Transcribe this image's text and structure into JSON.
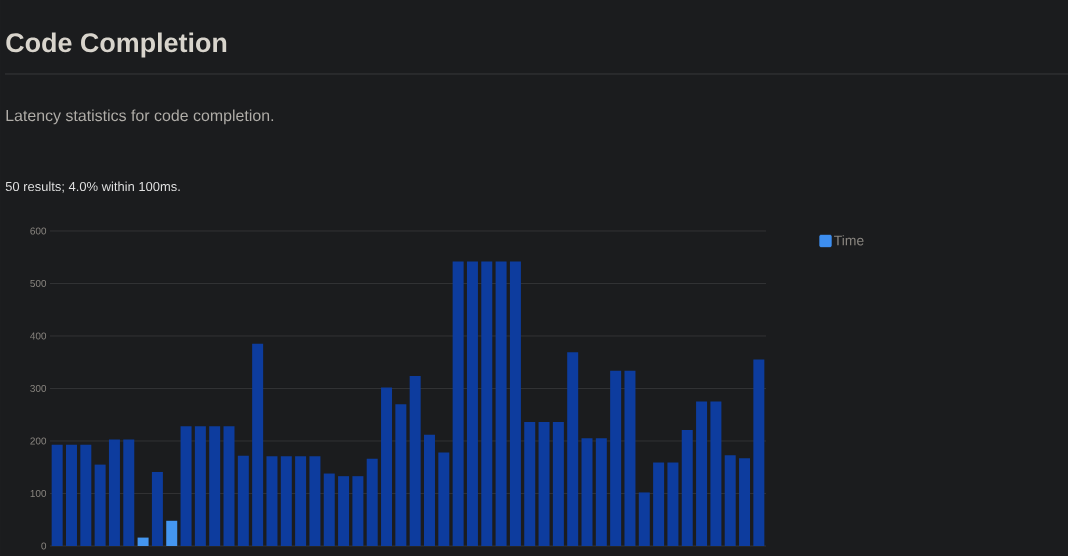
{
  "chart_data": {
    "type": "bar",
    "title": "Code Completion",
    "subtitle": "Latency statistics for code completion.",
    "annotations": [
      "50 results; 4.0% within 100ms."
    ],
    "categories": [
      null,
      null,
      null,
      null,
      null,
      null,
      null,
      null,
      null,
      null,
      null,
      null,
      null,
      null,
      null,
      null,
      null,
      null,
      null,
      null,
      null,
      null,
      null,
      null,
      null,
      null,
      null,
      null,
      null,
      null,
      null,
      null,
      null,
      null,
      null,
      null,
      null,
      null,
      null,
      null,
      null,
      null,
      null,
      null,
      null,
      null,
      null,
      null,
      null,
      null
    ],
    "series": [
      {
        "name": "Time",
        "color": "#3d8ef0",
        "colors": [
          "#0d3c9e",
          "#0d3c9e",
          "#0d3c9e",
          "#0d3c9e",
          "#0d3c9e",
          "#0d3c9e",
          "#4496f0",
          "#0d3c9e",
          "#4496f0",
          "#0d3c9e",
          "#0d3c9e",
          "#0d3c9e",
          "#0d3c9e",
          "#0d3c9e",
          "#0d3c9e",
          "#0d3c9e",
          "#0d3c9e",
          "#0d3c9e",
          "#0d3c9e",
          "#0d3c9e",
          "#0d3c9e",
          "#0d3c9e",
          "#0d3c9e",
          "#0d3c9e",
          "#0d3c9e",
          "#0d3c9e",
          "#0d3c9e",
          "#0d3c9e",
          "#0d3c9e",
          "#0d3c9e",
          "#0d3c9e",
          "#0d3c9e",
          "#0d3c9e",
          "#0d3c9e",
          "#0d3c9e",
          "#0d3c9e",
          "#0d3c9e",
          "#0d3c9e",
          "#0d3c9e",
          "#0d3c9e",
          "#0d3c9e",
          "#0d3c9e",
          "#0d3c9e",
          "#0d3c9e",
          "#0d3c9e",
          "#0d3c9e",
          "#0d3c9e",
          "#0d3c9e",
          "#0d3c9e",
          "#0d3c9e"
        ],
        "values": [
          193,
          193,
          193,
          155,
          203,
          203,
          16,
          141,
          48,
          228,
          228,
          228,
          228,
          172,
          385,
          171,
          171,
          171,
          171,
          138,
          133,
          133,
          166,
          302,
          270,
          324,
          212,
          178,
          542,
          542,
          542,
          542,
          542,
          236,
          236,
          236,
          369,
          205,
          205,
          334,
          334,
          102,
          159,
          159,
          221,
          275,
          275,
          173,
          167,
          355
        ]
      }
    ],
    "ylim": [
      0,
      600
    ],
    "yticks": [
      0,
      100,
      200,
      300,
      400,
      500,
      600
    ],
    "grid": "y",
    "legend": "top right",
    "tick_labels": "y"
  }
}
